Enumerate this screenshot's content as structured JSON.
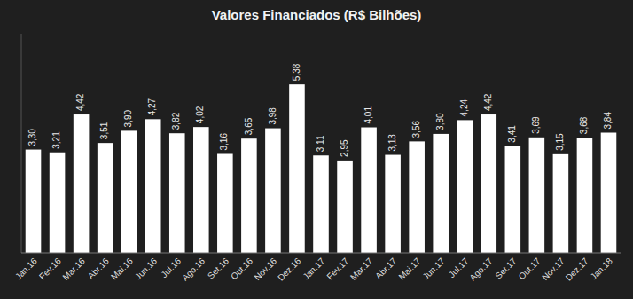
{
  "chart_data": {
    "type": "bar",
    "title": "Valores Financiados (R$ Bilhões)",
    "categories": [
      "Jan.16",
      "Fev.16",
      "Mar.16",
      "Abr.16",
      "Mai.16",
      "Jun.16",
      "Jul.16",
      "Ago.16",
      "Set.16",
      "Out.16",
      "Nov.16",
      "Dez.16",
      "Jan.17",
      "Fev.17",
      "Mar.17",
      "Abr.17",
      "Mai.17",
      "Jun.17",
      "Jul.17",
      "Ago.17",
      "Set.17",
      "Out.17",
      "Nov.17",
      "Dez.17",
      "Jan.18"
    ],
    "values": [
      3.3,
      3.21,
      4.42,
      3.51,
      3.9,
      4.27,
      3.82,
      4.02,
      3.16,
      3.65,
      3.98,
      5.38,
      3.11,
      2.95,
      4.01,
      3.13,
      3.56,
      3.8,
      4.24,
      4.42,
      3.41,
      3.69,
      3.15,
      3.68,
      3.84
    ],
    "value_labels": [
      "3,30",
      "3,21",
      "4,42",
      "3,51",
      "3,90",
      "4,27",
      "3,82",
      "4,02",
      "3,16",
      "3,65",
      "3,98",
      "5,38",
      "3,11",
      "2,95",
      "4,01",
      "3,13",
      "3,56",
      "3,80",
      "4,24",
      "4,42",
      "3,41",
      "3,69",
      "3,15",
      "3,68",
      "3,84"
    ],
    "color": "#ffffff",
    "ylim": [
      0,
      7.0
    ],
    "data_labels": true,
    "tick_labels": "x"
  }
}
